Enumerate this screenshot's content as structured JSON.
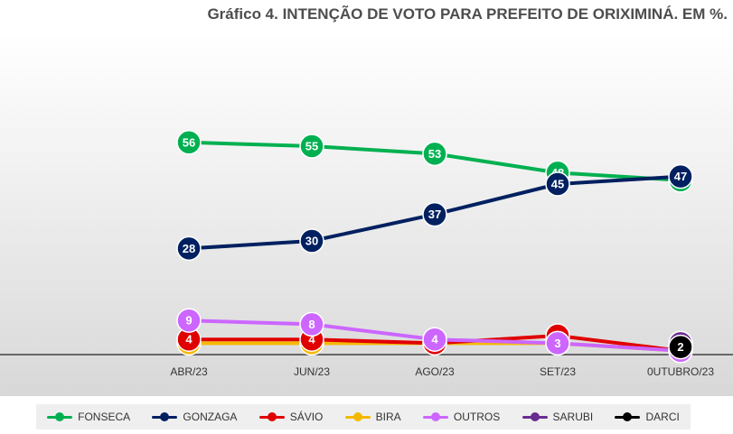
{
  "title": "Gráfico 4. INTENÇÃO DE VOTO PARA PREFEITO DE ORIXIMINÁ. EM %.",
  "chart_data": {
    "type": "line",
    "title": "Gráfico 4. INTENÇÃO DE VOTO PARA PREFEITO DE ORIXIMINÁ. EM %.",
    "categories": [
      "ABR/23",
      "JUN/23",
      "AGO/23",
      "SET/23",
      "0UTUBRO/23"
    ],
    "ylim": [
      0,
      60
    ],
    "grid": false,
    "legend_position": "bottom",
    "series": [
      {
        "name": "BIRA",
        "color": "#f5b800",
        "values": [
          3,
          3,
          3,
          3,
          1
        ]
      },
      {
        "name": "SÁVIO",
        "color": "#e00000",
        "values": [
          4,
          4,
          3,
          5,
          1
        ]
      },
      {
        "name": "OUTROS",
        "color": "#cc66ff",
        "values": [
          9,
          8,
          4,
          3,
          1
        ]
      },
      {
        "name": "SARUBI",
        "color": "#6a2c91",
        "values": [
          null,
          null,
          null,
          null,
          3
        ]
      },
      {
        "name": "DARCI",
        "color": "#000000",
        "values": [
          null,
          null,
          null,
          null,
          2
        ]
      },
      {
        "name": "FONSECA",
        "color": "#00b050",
        "values": [
          56,
          55,
          53,
          48,
          46
        ]
      },
      {
        "name": "GONZAGA",
        "color": "#002060",
        "values": [
          28,
          30,
          37,
          45,
          47
        ]
      }
    ]
  },
  "legend": [
    {
      "name": "FONSECA",
      "color": "#00b050"
    },
    {
      "name": "GONZAGA",
      "color": "#002060"
    },
    {
      "name": "SÁVIO",
      "color": "#e00000"
    },
    {
      "name": "BIRA",
      "color": "#f5b800"
    },
    {
      "name": "OUTROS",
      "color": "#cc66ff"
    },
    {
      "name": "SARUBI",
      "color": "#6a2c91"
    },
    {
      "name": "DARCI",
      "color": "#000000"
    }
  ]
}
